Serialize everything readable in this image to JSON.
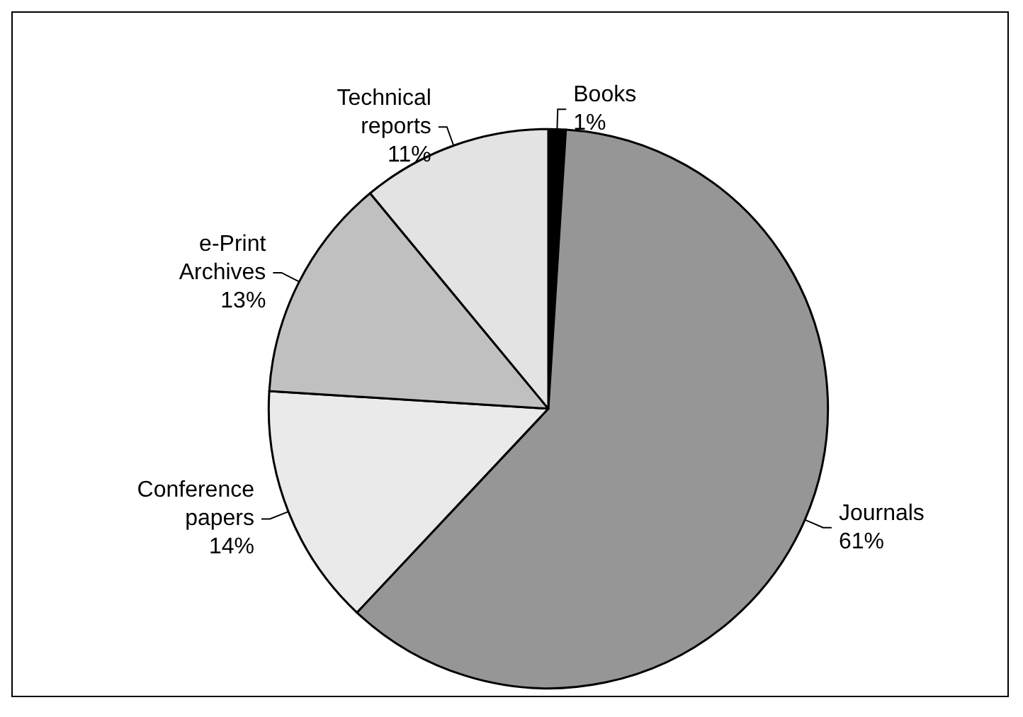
{
  "chart_data": {
    "type": "pie",
    "categories": [
      "Books",
      "Journals",
      "Conference papers",
      "e-Print Archives",
      "Technical reports"
    ],
    "values": [
      1,
      61,
      14,
      13,
      11
    ],
    "value_labels": [
      "1%",
      "61%",
      "14%",
      "13%",
      "11%"
    ],
    "colors": [
      "#000000",
      "#969696",
      "#eaeaea",
      "#c0c0c0",
      "#e3e3e3"
    ]
  }
}
